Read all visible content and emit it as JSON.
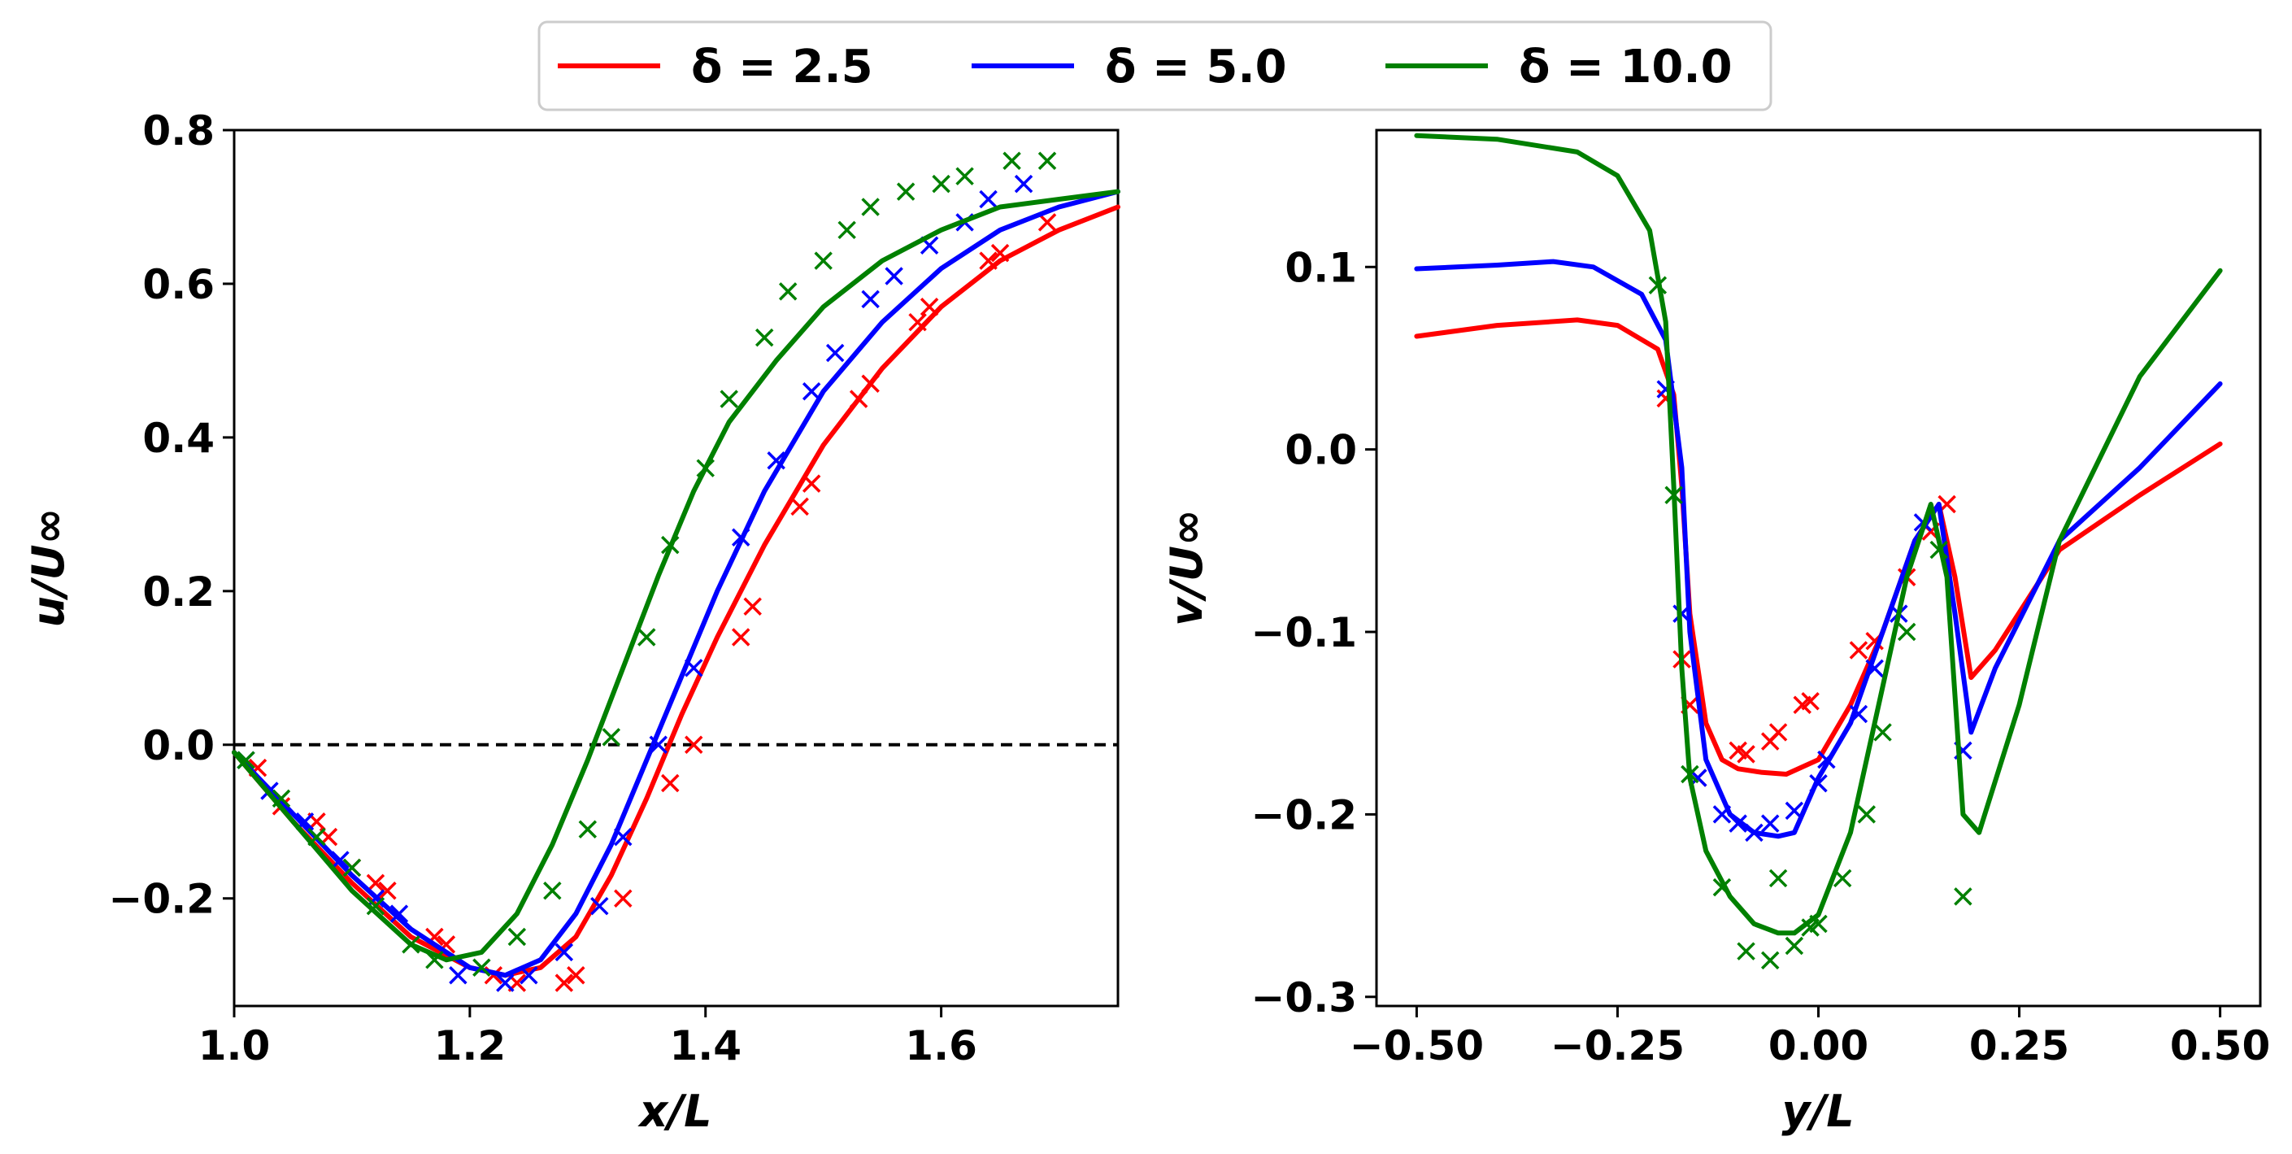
{
  "legend": {
    "entries": [
      {
        "label": "δ = 2.5",
        "color": "#ff0000"
      },
      {
        "label": "δ = 5.0",
        "color": "#0000ff"
      },
      {
        "label": "δ = 10.0",
        "color": "#008000"
      }
    ],
    "placement": "top-center"
  },
  "chart_data": [
    {
      "type": "line",
      "xlabel": "x/L",
      "ylabel": "u/U∞",
      "xlim": [
        1.0,
        1.75
      ],
      "ylim": [
        -0.34,
        0.8
      ],
      "xticks": [
        1.0,
        1.2,
        1.4,
        1.6
      ],
      "xtick_labels": [
        "1.0",
        "1.2",
        "1.4",
        "1.6"
      ],
      "yticks": [
        -0.2,
        0.0,
        0.2,
        0.4,
        0.6,
        0.8
      ],
      "ytick_labels": [
        "−0.2",
        "0.0",
        "0.2",
        "0.4",
        "0.6",
        "0.8"
      ],
      "reference_line": {
        "y": 0.0,
        "style": "dashed"
      },
      "grid": false,
      "series": [
        {
          "name": "δ = 2.5",
          "color": "#ff0000",
          "line": {
            "x": [
              1.0,
              1.05,
              1.1,
              1.15,
              1.2,
              1.23,
              1.26,
              1.29,
              1.32,
              1.35,
              1.38,
              1.41,
              1.45,
              1.5,
              1.55,
              1.6,
              1.65,
              1.7,
              1.75
            ],
            "y": [
              -0.01,
              -0.1,
              -0.18,
              -0.25,
              -0.29,
              -0.3,
              -0.29,
              -0.25,
              -0.17,
              -0.07,
              0.04,
              0.14,
              0.26,
              0.39,
              0.49,
              0.57,
              0.63,
              0.67,
              0.7
            ]
          },
          "markers": {
            "x": [
              1.02,
              1.04,
              1.07,
              1.08,
              1.1,
              1.12,
              1.13,
              1.17,
              1.18,
              1.22,
              1.24,
              1.28,
              1.29,
              1.33,
              1.37,
              1.39,
              1.43,
              1.44,
              1.48,
              1.49,
              1.53,
              1.54,
              1.58,
              1.59,
              1.64,
              1.65,
              1.69
            ],
            "y": [
              -0.03,
              -0.08,
              -0.1,
              -0.12,
              -0.16,
              -0.18,
              -0.19,
              -0.25,
              -0.26,
              -0.3,
              -0.31,
              -0.31,
              -0.3,
              -0.2,
              -0.05,
              0.0,
              0.14,
              0.18,
              0.31,
              0.34,
              0.45,
              0.47,
              0.55,
              0.57,
              0.63,
              0.64,
              0.68
            ]
          }
        },
        {
          "name": "δ = 5.0",
          "color": "#0000ff",
          "line": {
            "x": [
              1.0,
              1.05,
              1.1,
              1.15,
              1.2,
              1.23,
              1.26,
              1.29,
              1.32,
              1.35,
              1.38,
              1.41,
              1.45,
              1.5,
              1.55,
              1.6,
              1.65,
              1.7,
              1.75
            ],
            "y": [
              -0.01,
              -0.09,
              -0.17,
              -0.24,
              -0.29,
              -0.3,
              -0.28,
              -0.22,
              -0.13,
              -0.02,
              0.09,
              0.2,
              0.33,
              0.46,
              0.55,
              0.62,
              0.67,
              0.7,
              0.72
            ]
          },
          "markers": {
            "x": [
              1.01,
              1.03,
              1.06,
              1.09,
              1.12,
              1.14,
              1.19,
              1.23,
              1.25,
              1.28,
              1.31,
              1.33,
              1.36,
              1.39,
              1.43,
              1.46,
              1.49,
              1.51,
              1.54,
              1.56,
              1.59,
              1.62,
              1.64,
              1.67
            ],
            "y": [
              -0.02,
              -0.06,
              -0.1,
              -0.15,
              -0.2,
              -0.22,
              -0.3,
              -0.31,
              -0.3,
              -0.27,
              -0.21,
              -0.12,
              0.0,
              0.1,
              0.27,
              0.37,
              0.46,
              0.51,
              0.58,
              0.61,
              0.65,
              0.68,
              0.71,
              0.73
            ]
          }
        },
        {
          "name": "δ = 10.0",
          "color": "#008000",
          "line": {
            "x": [
              1.0,
              1.05,
              1.1,
              1.15,
              1.18,
              1.21,
              1.24,
              1.27,
              1.3,
              1.33,
              1.36,
              1.39,
              1.42,
              1.46,
              1.5,
              1.55,
              1.6,
              1.65,
              1.7,
              1.75
            ],
            "y": [
              -0.01,
              -0.1,
              -0.19,
              -0.26,
              -0.28,
              -0.27,
              -0.22,
              -0.13,
              -0.02,
              0.1,
              0.22,
              0.33,
              0.42,
              0.5,
              0.57,
              0.63,
              0.67,
              0.7,
              0.71,
              0.72
            ]
          },
          "markers": {
            "x": [
              1.01,
              1.04,
              1.07,
              1.1,
              1.12,
              1.15,
              1.17,
              1.21,
              1.24,
              1.27,
              1.3,
              1.32,
              1.35,
              1.37,
              1.4,
              1.42,
              1.45,
              1.47,
              1.5,
              1.52,
              1.54,
              1.57,
              1.6,
              1.62,
              1.66,
              1.69
            ],
            "y": [
              -0.02,
              -0.07,
              -0.12,
              -0.16,
              -0.21,
              -0.26,
              -0.28,
              -0.29,
              -0.25,
              -0.19,
              -0.11,
              0.01,
              0.14,
              0.26,
              0.36,
              0.45,
              0.53,
              0.59,
              0.63,
              0.67,
              0.7,
              0.72,
              0.73,
              0.74,
              0.76,
              0.76
            ]
          }
        }
      ]
    },
    {
      "type": "line",
      "xlabel": "y/L",
      "ylabel": "v/U∞",
      "xlim": [
        -0.55,
        0.55
      ],
      "ylim": [
        -0.305,
        0.175
      ],
      "xticks": [
        -0.5,
        -0.25,
        0.0,
        0.25,
        0.5
      ],
      "xtick_labels": [
        "−0.50",
        "−0.25",
        "0.00",
        "0.25",
        "0.50"
      ],
      "yticks": [
        -0.3,
        -0.2,
        -0.1,
        0.0,
        0.1
      ],
      "ytick_labels": [
        "−0.3",
        "−0.2",
        "−0.1",
        "0.0",
        "0.1"
      ],
      "grid": false,
      "series": [
        {
          "name": "δ = 2.5",
          "color": "#ff0000",
          "line": {
            "x": [
              -0.5,
              -0.4,
              -0.3,
              -0.25,
              -0.2,
              -0.18,
              -0.17,
              -0.16,
              -0.14,
              -0.12,
              -0.1,
              -0.07,
              -0.04,
              0.0,
              0.04,
              0.08,
              0.12,
              0.15,
              0.17,
              0.19,
              0.22,
              0.3,
              0.4,
              0.5
            ],
            "y": [
              0.062,
              0.068,
              0.071,
              0.068,
              0.055,
              0.03,
              -0.02,
              -0.09,
              -0.15,
              -0.17,
              -0.175,
              -0.177,
              -0.178,
              -0.17,
              -0.14,
              -0.1,
              -0.05,
              -0.03,
              -0.07,
              -0.125,
              -0.11,
              -0.055,
              -0.025,
              0.003
            ]
          },
          "markers": {
            "x": [
              -0.19,
              -0.17,
              -0.16,
              -0.15,
              -0.1,
              -0.09,
              -0.06,
              -0.05,
              -0.02,
              -0.01,
              0.05,
              0.07,
              0.11,
              0.14,
              0.16
            ],
            "y": [
              0.028,
              -0.115,
              -0.14,
              -0.18,
              -0.165,
              -0.167,
              -0.16,
              -0.155,
              -0.14,
              -0.138,
              -0.11,
              -0.105,
              -0.07,
              -0.045,
              -0.03
            ]
          }
        },
        {
          "name": "δ = 5.0",
          "color": "#0000ff",
          "line": {
            "x": [
              -0.5,
              -0.4,
              -0.33,
              -0.28,
              -0.22,
              -0.19,
              -0.17,
              -0.16,
              -0.14,
              -0.11,
              -0.08,
              -0.05,
              -0.03,
              0.0,
              0.04,
              0.08,
              0.12,
              0.15,
              0.17,
              0.19,
              0.22,
              0.3,
              0.4,
              0.5
            ],
            "y": [
              0.099,
              0.101,
              0.103,
              0.1,
              0.085,
              0.06,
              -0.01,
              -0.1,
              -0.17,
              -0.2,
              -0.21,
              -0.212,
              -0.21,
              -0.18,
              -0.15,
              -0.1,
              -0.05,
              -0.03,
              -0.09,
              -0.155,
              -0.12,
              -0.05,
              -0.01,
              0.036
            ]
          },
          "markers": {
            "x": [
              -0.19,
              -0.17,
              -0.15,
              -0.12,
              -0.1,
              -0.08,
              -0.06,
              -0.03,
              0.0,
              0.01,
              0.05,
              0.07,
              0.1,
              0.13,
              0.18
            ],
            "y": [
              0.033,
              -0.09,
              -0.18,
              -0.2,
              -0.205,
              -0.21,
              -0.205,
              -0.198,
              -0.183,
              -0.17,
              -0.145,
              -0.12,
              -0.09,
              -0.04,
              -0.165
            ]
          }
        },
        {
          "name": "δ = 10.0",
          "color": "#008000",
          "line": {
            "x": [
              -0.5,
              -0.4,
              -0.3,
              -0.25,
              -0.21,
              -0.19,
              -0.18,
              -0.17,
              -0.16,
              -0.14,
              -0.11,
              -0.08,
              -0.05,
              -0.03,
              0.0,
              0.04,
              0.08,
              0.11,
              0.14,
              0.16,
              0.18,
              0.2,
              0.25,
              0.3,
              0.4,
              0.5
            ],
            "y": [
              0.172,
              0.17,
              0.163,
              0.15,
              0.12,
              0.07,
              -0.02,
              -0.12,
              -0.18,
              -0.22,
              -0.245,
              -0.26,
              -0.265,
              -0.265,
              -0.255,
              -0.21,
              -0.13,
              -0.07,
              -0.03,
              -0.07,
              -0.2,
              -0.21,
              -0.14,
              -0.05,
              0.04,
              0.098
            ]
          },
          "markers": {
            "x": [
              -0.2,
              -0.18,
              -0.16,
              -0.12,
              -0.09,
              -0.06,
              -0.05,
              -0.03,
              -0.01,
              0.0,
              0.03,
              0.06,
              0.08,
              0.11,
              0.15,
              0.18
            ],
            "y": [
              0.09,
              -0.025,
              -0.178,
              -0.24,
              -0.275,
              -0.28,
              -0.235,
              -0.272,
              -0.262,
              -0.26,
              -0.235,
              -0.2,
              -0.155,
              -0.1,
              -0.055,
              -0.245
            ]
          }
        }
      ]
    }
  ]
}
